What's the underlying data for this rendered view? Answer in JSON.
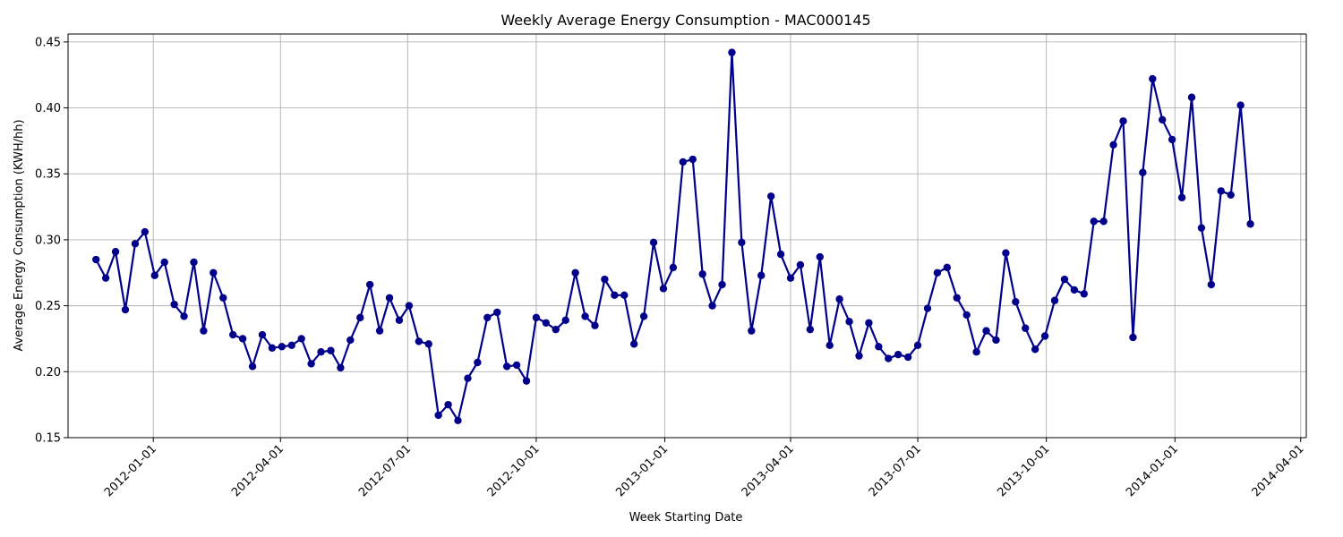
{
  "colors": {
    "line": "#00008B",
    "marker": "#00008B",
    "grid": "#b0b0b0",
    "axis": "#000000"
  },
  "chart_data": {
    "type": "line",
    "title": "Weekly Average Energy Consumption - MAC000145",
    "xlabel": "Week Starting Date",
    "ylabel": "Average Energy Consumption (KWH/hh)",
    "grid": true,
    "legend": "none",
    "x_axis": "date",
    "xlim": [
      "2011-11-01",
      "2014-04-05"
    ],
    "ylim": [
      0.15,
      0.456
    ],
    "x_ticks": [
      "2012-01-01",
      "2012-04-01",
      "2012-07-01",
      "2012-10-01",
      "2013-01-01",
      "2013-04-01",
      "2013-07-01",
      "2013-10-01",
      "2014-01-01",
      "2014-04-01"
    ],
    "y_ticks": [
      "0.15",
      "0.20",
      "0.25",
      "0.30",
      "0.35",
      "0.40",
      "0.45"
    ],
    "series": [
      {
        "x": [
          "2011-11-21",
          "2011-11-28",
          "2011-12-05",
          "2011-12-12",
          "2011-12-19",
          "2011-12-26",
          "2012-01-02",
          "2012-01-09",
          "2012-01-16",
          "2012-01-23",
          "2012-01-30",
          "2012-02-06",
          "2012-02-13",
          "2012-02-20",
          "2012-02-27",
          "2012-03-05",
          "2012-03-12",
          "2012-03-19",
          "2012-03-26",
          "2012-04-02",
          "2012-04-09",
          "2012-04-16",
          "2012-04-23",
          "2012-04-30",
          "2012-05-07",
          "2012-05-14",
          "2012-05-21",
          "2012-05-28",
          "2012-06-04",
          "2012-06-11",
          "2012-06-18",
          "2012-06-25",
          "2012-07-02",
          "2012-07-09",
          "2012-07-16",
          "2012-07-23",
          "2012-07-30",
          "2012-08-06",
          "2012-08-13",
          "2012-08-20",
          "2012-08-27",
          "2012-09-03",
          "2012-09-10",
          "2012-09-17",
          "2012-09-24",
          "2012-10-01",
          "2012-10-08",
          "2012-10-15",
          "2012-10-22",
          "2012-10-29",
          "2012-11-05",
          "2012-11-12",
          "2012-11-19",
          "2012-11-26",
          "2012-12-03",
          "2012-12-10",
          "2012-12-17",
          "2012-12-24",
          "2012-12-31",
          "2013-01-07",
          "2013-01-14",
          "2013-01-21",
          "2013-01-28",
          "2013-02-04",
          "2013-02-11",
          "2013-02-18",
          "2013-02-25",
          "2013-03-04",
          "2013-03-11",
          "2013-03-18",
          "2013-03-25",
          "2013-04-01",
          "2013-04-08",
          "2013-04-15",
          "2013-04-22",
          "2013-04-29",
          "2013-05-06",
          "2013-05-13",
          "2013-05-20",
          "2013-05-27",
          "2013-06-03",
          "2013-06-10",
          "2013-06-17",
          "2013-06-24",
          "2013-07-01",
          "2013-07-08",
          "2013-07-15",
          "2013-07-22",
          "2013-07-29",
          "2013-08-05",
          "2013-08-12",
          "2013-08-19",
          "2013-08-26",
          "2013-09-02",
          "2013-09-09",
          "2013-09-16",
          "2013-09-23",
          "2013-09-30",
          "2013-10-07",
          "2013-10-14",
          "2013-10-21",
          "2013-10-28",
          "2013-11-04",
          "2013-11-11",
          "2013-11-18",
          "2013-11-25",
          "2013-12-02",
          "2013-12-09",
          "2013-12-16",
          "2013-12-23",
          "2013-12-30",
          "2014-01-06",
          "2014-01-13",
          "2014-01-20",
          "2014-01-27",
          "2014-02-03",
          "2014-02-10",
          "2014-02-17",
          "2014-02-24"
        ],
        "values": [
          0.285,
          0.271,
          0.291,
          0.247,
          0.297,
          0.306,
          0.273,
          0.283,
          0.251,
          0.242,
          0.283,
          0.231,
          0.275,
          0.256,
          0.228,
          0.225,
          0.204,
          0.228,
          0.218,
          0.219,
          0.22,
          0.225,
          0.206,
          0.215,
          0.216,
          0.203,
          0.224,
          0.241,
          0.266,
          0.231,
          0.256,
          0.239,
          0.25,
          0.223,
          0.221,
          0.167,
          0.175,
          0.163,
          0.195,
          0.207,
          0.241,
          0.245,
          0.204,
          0.205,
          0.193,
          0.241,
          0.237,
          0.232,
          0.239,
          0.275,
          0.242,
          0.235,
          0.27,
          0.258,
          0.258,
          0.221,
          0.242,
          0.298,
          0.263,
          0.279,
          0.359,
          0.361,
          0.274,
          0.25,
          0.266,
          0.442,
          0.298,
          0.231,
          0.273,
          0.333,
          0.289,
          0.271,
          0.281,
          0.232,
          0.287,
          0.22,
          0.255,
          0.238,
          0.212,
          0.237,
          0.219,
          0.21,
          0.213,
          0.211,
          0.22,
          0.248,
          0.275,
          0.279,
          0.256,
          0.243,
          0.215,
          0.231,
          0.224,
          0.29,
          0.253,
          0.233,
          0.217,
          0.227,
          0.254,
          0.27,
          0.262,
          0.259,
          0.314,
          0.314,
          0.372,
          0.39,
          0.226,
          0.351,
          0.422,
          0.391,
          0.376,
          0.332,
          0.408,
          0.309,
          0.266,
          0.337,
          0.334,
          0.402,
          0.312
        ]
      }
    ]
  }
}
